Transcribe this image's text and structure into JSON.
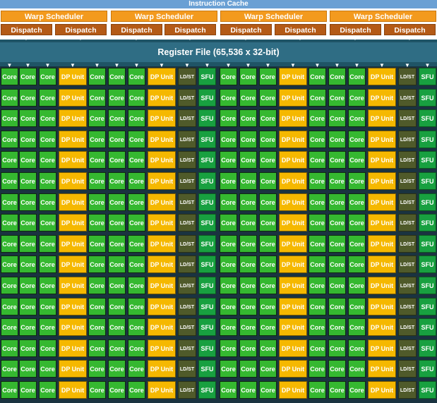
{
  "instruction_cache": "Instruction Cache",
  "warp_schedulers": [
    "Warp Scheduler",
    "Warp Scheduler",
    "Warp Scheduler",
    "Warp Scheduler"
  ],
  "dispatch_units": [
    "Dispatch",
    "Dispatch",
    "Dispatch",
    "Dispatch",
    "Dispatch",
    "Dispatch",
    "Dispatch",
    "Dispatch"
  ],
  "register_file": "Register File (65,536 x 32-bit)",
  "unit_labels": {
    "core": "Core",
    "dp": "DP Unit",
    "ldst": "LD/ST",
    "sfu": "SFU"
  },
  "row_pattern": [
    "core",
    "core",
    "core",
    "dp",
    "core",
    "core",
    "core",
    "dp",
    "ldst",
    "sfu",
    "core",
    "core",
    "core",
    "dp",
    "core",
    "core",
    "core",
    "dp",
    "ldst",
    "sfu"
  ],
  "row_count": 16,
  "colors": {
    "instruction_cache": "#6aa0d4",
    "warp_scheduler": "#f39a1e",
    "dispatch": "#b45a16",
    "register_file": "#2f6d84",
    "core": "#35b830",
    "dp_unit": "#f5b800",
    "ldst": "#4f5a2a",
    "sfu": "#18a040"
  }
}
